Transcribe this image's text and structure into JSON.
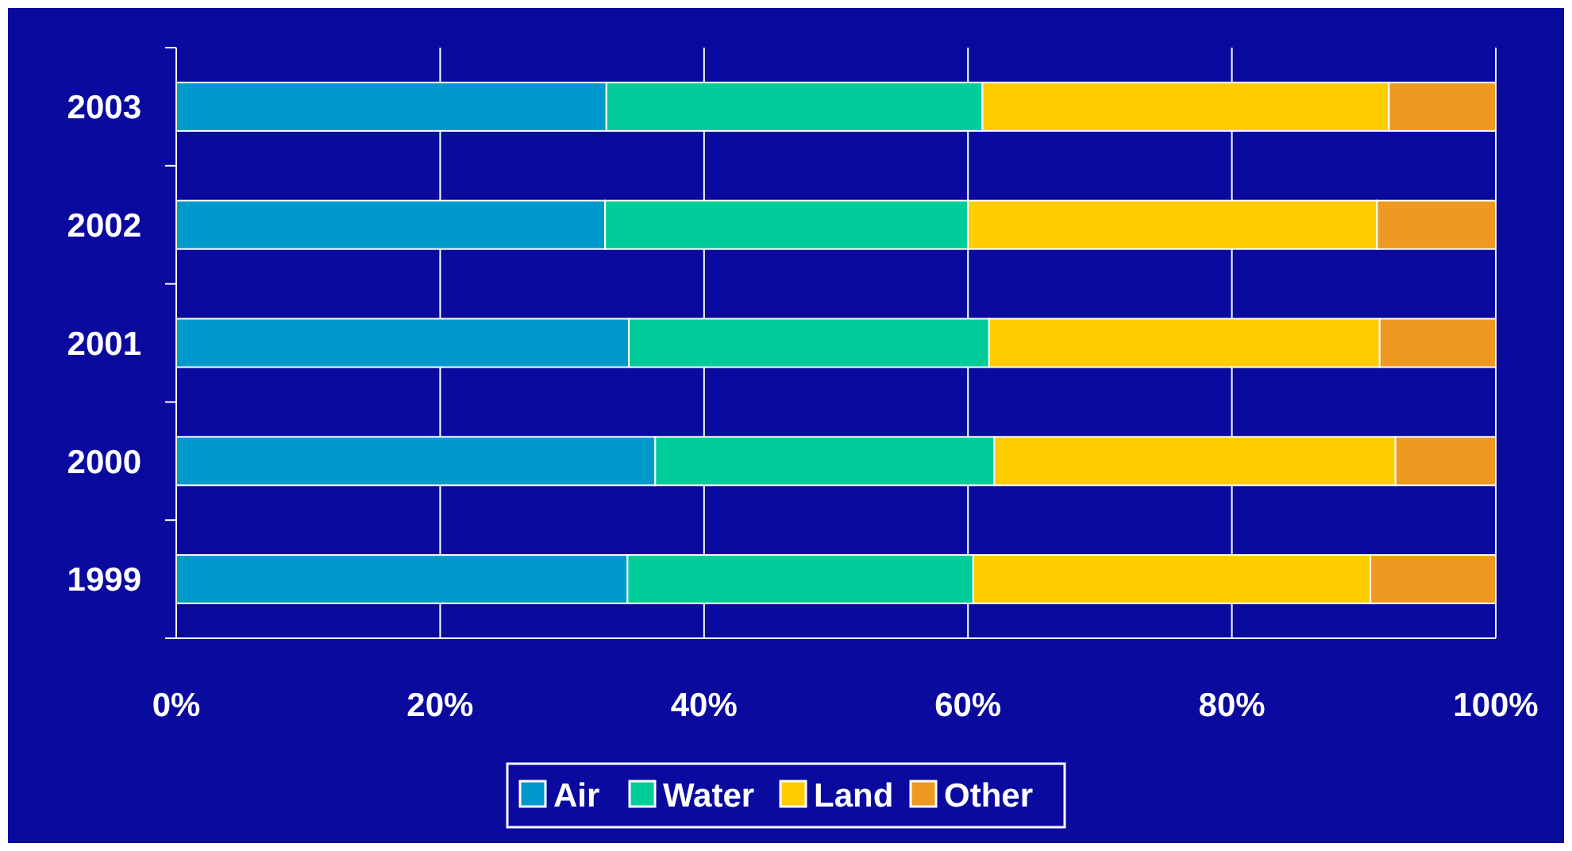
{
  "chart_data": {
    "type": "bar",
    "orientation": "horizontal",
    "stacked": true,
    "categories": [
      "2003",
      "2002",
      "2001",
      "2000",
      "1999"
    ],
    "series": [
      {
        "name": "Air",
        "color": "#0099cc",
        "values": [
          32.6,
          32.5,
          34.3,
          36.3,
          34.2
        ]
      },
      {
        "name": "Water",
        "color": "#00cc99",
        "values": [
          28.5,
          27.5,
          27.3,
          25.7,
          26.2
        ]
      },
      {
        "name": "Land",
        "color": "#ffcc00",
        "values": [
          30.8,
          31.0,
          29.6,
          30.4,
          30.1
        ]
      },
      {
        "name": "Other",
        "color": "#ee9922",
        "values": [
          8.1,
          9.0,
          8.8,
          7.6,
          9.5
        ]
      }
    ],
    "xlim": [
      0,
      100
    ],
    "xticks": [
      {
        "value": 0,
        "label": "0%"
      },
      {
        "value": 20,
        "label": "20%"
      },
      {
        "value": 40,
        "label": "40%"
      },
      {
        "value": 60,
        "label": "60%"
      },
      {
        "value": 80,
        "label": "80%"
      },
      {
        "value": 100,
        "label": "100%"
      }
    ],
    "grid": "x",
    "legend": "bottom"
  }
}
